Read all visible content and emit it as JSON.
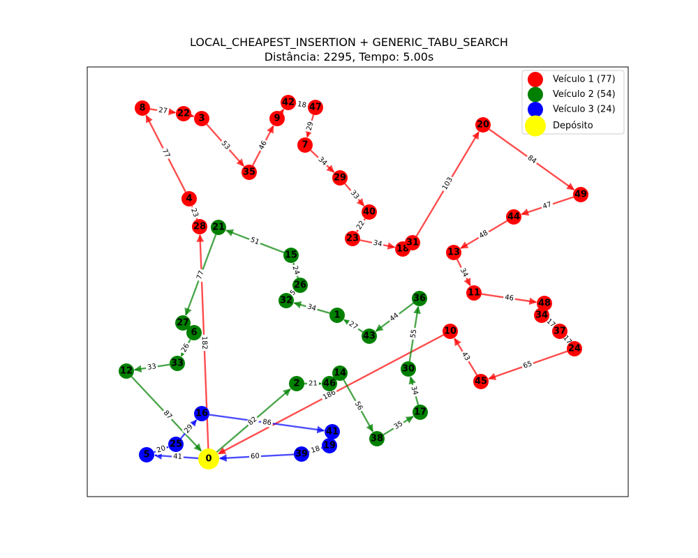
{
  "title": {
    "line1": "LOCAL_CHEAPEST_INSERTION + GENERIC_TABU_SEARCH",
    "line2": "Distância: 2295, Tempo: 5.00s"
  },
  "colors": {
    "vehicle1": "#ff0000",
    "vehicle2": "#008000",
    "vehicle3": "#0000ff",
    "depot": "#ffff00"
  },
  "legend": [
    {
      "label": "Veículo 1 (77)",
      "color": "#ff0000"
    },
    {
      "label": "Veículo 2 (54)",
      "color": "#008000"
    },
    {
      "label": "Veículo 3 (24)",
      "color": "#0000ff"
    },
    {
      "label": "Depósito",
      "color": "#ffff00"
    }
  ],
  "nodes": [
    {
      "id": "0",
      "vehicle": "depot"
    },
    {
      "id": "1",
      "vehicle": 2
    },
    {
      "id": "2",
      "vehicle": 2
    },
    {
      "id": "3",
      "vehicle": 1
    },
    {
      "id": "4",
      "vehicle": 1
    },
    {
      "id": "5",
      "vehicle": 3
    },
    {
      "id": "6",
      "vehicle": 2
    },
    {
      "id": "7",
      "vehicle": 1
    },
    {
      "id": "8",
      "vehicle": 1
    },
    {
      "id": "9",
      "vehicle": 1
    },
    {
      "id": "10",
      "vehicle": 1
    },
    {
      "id": "11",
      "vehicle": 1
    },
    {
      "id": "12",
      "vehicle": 2
    },
    {
      "id": "13",
      "vehicle": 1
    },
    {
      "id": "14",
      "vehicle": 2
    },
    {
      "id": "15",
      "vehicle": 2
    },
    {
      "id": "16",
      "vehicle": 3
    },
    {
      "id": "17",
      "vehicle": 2
    },
    {
      "id": "18",
      "vehicle": 1
    },
    {
      "id": "19",
      "vehicle": 3
    },
    {
      "id": "20",
      "vehicle": 1
    },
    {
      "id": "21",
      "vehicle": 2
    },
    {
      "id": "22",
      "vehicle": 1
    },
    {
      "id": "23",
      "vehicle": 1
    },
    {
      "id": "24",
      "vehicle": 1
    },
    {
      "id": "25",
      "vehicle": 3
    },
    {
      "id": "26",
      "vehicle": 2
    },
    {
      "id": "27",
      "vehicle": 2
    },
    {
      "id": "28",
      "vehicle": 1
    },
    {
      "id": "29",
      "vehicle": 1
    },
    {
      "id": "30",
      "vehicle": 2
    },
    {
      "id": "31",
      "vehicle": 1
    },
    {
      "id": "32",
      "vehicle": 2
    },
    {
      "id": "33",
      "vehicle": 2
    },
    {
      "id": "34",
      "vehicle": 1
    },
    {
      "id": "35",
      "vehicle": 1
    },
    {
      "id": "36",
      "vehicle": 2
    },
    {
      "id": "37",
      "vehicle": 1
    },
    {
      "id": "38",
      "vehicle": 2
    },
    {
      "id": "39",
      "vehicle": 3
    },
    {
      "id": "40",
      "vehicle": 1
    },
    {
      "id": "41",
      "vehicle": 3
    },
    {
      "id": "42",
      "vehicle": 1
    },
    {
      "id": "43",
      "vehicle": 2
    },
    {
      "id": "44",
      "vehicle": 1
    },
    {
      "id": "45",
      "vehicle": 1
    },
    {
      "id": "46",
      "vehicle": 2
    },
    {
      "id": "47",
      "vehicle": 1
    },
    {
      "id": "48",
      "vehicle": 1
    },
    {
      "id": "49",
      "vehicle": 1
    }
  ],
  "edges": [
    {
      "from": "0",
      "to": "28",
      "label": "182",
      "vehicle": 1
    },
    {
      "from": "28",
      "to": "4",
      "label": "23",
      "vehicle": 1
    },
    {
      "from": "4",
      "to": "8",
      "label": "77",
      "vehicle": 1
    },
    {
      "from": "8",
      "to": "22",
      "label": "27",
      "vehicle": 1
    },
    {
      "from": "22",
      "to": "3",
      "label": "",
      "vehicle": 1
    },
    {
      "from": "3",
      "to": "35",
      "label": "53",
      "vehicle": 1
    },
    {
      "from": "35",
      "to": "9",
      "label": "46",
      "vehicle": 1
    },
    {
      "from": "9",
      "to": "42",
      "label": "",
      "vehicle": 1
    },
    {
      "from": "42",
      "to": "47",
      "label": "18",
      "vehicle": 1
    },
    {
      "from": "47",
      "to": "7",
      "label": "29",
      "vehicle": 1
    },
    {
      "from": "7",
      "to": "29",
      "label": "34",
      "vehicle": 1
    },
    {
      "from": "29",
      "to": "40",
      "label": "33",
      "vehicle": 1
    },
    {
      "from": "40",
      "to": "23",
      "label": "22",
      "vehicle": 1
    },
    {
      "from": "23",
      "to": "18",
      "label": "34",
      "vehicle": 1
    },
    {
      "from": "18",
      "to": "31",
      "label": "",
      "vehicle": 1
    },
    {
      "from": "31",
      "to": "20",
      "label": "103",
      "vehicle": 1
    },
    {
      "from": "20",
      "to": "49",
      "label": "84",
      "vehicle": 1
    },
    {
      "from": "49",
      "to": "44",
      "label": "47",
      "vehicle": 1
    },
    {
      "from": "44",
      "to": "13",
      "label": "48",
      "vehicle": 1
    },
    {
      "from": "13",
      "to": "11",
      "label": "34",
      "vehicle": 1
    },
    {
      "from": "11",
      "to": "48",
      "label": "46",
      "vehicle": 1
    },
    {
      "from": "48",
      "to": "34",
      "label": "",
      "vehicle": 1
    },
    {
      "from": "34",
      "to": "37",
      "label": "17",
      "vehicle": 1
    },
    {
      "from": "37",
      "to": "24",
      "label": "17",
      "vehicle": 1
    },
    {
      "from": "24",
      "to": "45",
      "label": "65",
      "vehicle": 1
    },
    {
      "from": "45",
      "to": "10",
      "label": "43",
      "vehicle": 1
    },
    {
      "from": "10",
      "to": "0",
      "label": "186",
      "vehicle": 1
    },
    {
      "from": "0",
      "to": "2",
      "label": "82",
      "vehicle": 2
    },
    {
      "from": "2",
      "to": "46",
      "label": "21",
      "vehicle": 2
    },
    {
      "from": "46",
      "to": "14",
      "label": "",
      "vehicle": 2
    },
    {
      "from": "14",
      "to": "38",
      "label": "56",
      "vehicle": 2
    },
    {
      "from": "38",
      "to": "17",
      "label": "35",
      "vehicle": 2
    },
    {
      "from": "17",
      "to": "30",
      "label": "34",
      "vehicle": 2
    },
    {
      "from": "30",
      "to": "36",
      "label": "55",
      "vehicle": 2
    },
    {
      "from": "36",
      "to": "43",
      "label": "44",
      "vehicle": 2
    },
    {
      "from": "43",
      "to": "1",
      "label": "27",
      "vehicle": 2
    },
    {
      "from": "1",
      "to": "32",
      "label": "34",
      "vehicle": 2
    },
    {
      "from": "32",
      "to": "26",
      "label": "5",
      "vehicle": 2
    },
    {
      "from": "26",
      "to": "15",
      "label": "24",
      "vehicle": 2
    },
    {
      "from": "15",
      "to": "21",
      "label": "51",
      "vehicle": 2
    },
    {
      "from": "21",
      "to": "27",
      "label": "77",
      "vehicle": 2
    },
    {
      "from": "27",
      "to": "6",
      "label": "",
      "vehicle": 2
    },
    {
      "from": "6",
      "to": "33",
      "label": "26",
      "vehicle": 2
    },
    {
      "from": "33",
      "to": "12",
      "label": "33",
      "vehicle": 2
    },
    {
      "from": "12",
      "to": "0",
      "label": "87",
      "vehicle": 2
    },
    {
      "from": "0",
      "to": "5",
      "label": "41",
      "vehicle": 3
    },
    {
      "from": "5",
      "to": "25",
      "label": "20",
      "vehicle": 3
    },
    {
      "from": "25",
      "to": "16",
      "label": "29",
      "vehicle": 3
    },
    {
      "from": "16",
      "to": "41",
      "label": "86",
      "vehicle": 3
    },
    {
      "from": "41",
      "to": "19",
      "label": "",
      "vehicle": 3
    },
    {
      "from": "19",
      "to": "39",
      "label": "18",
      "vehicle": 3
    },
    {
      "from": "39",
      "to": "0",
      "label": "60",
      "vehicle": 3
    }
  ]
}
